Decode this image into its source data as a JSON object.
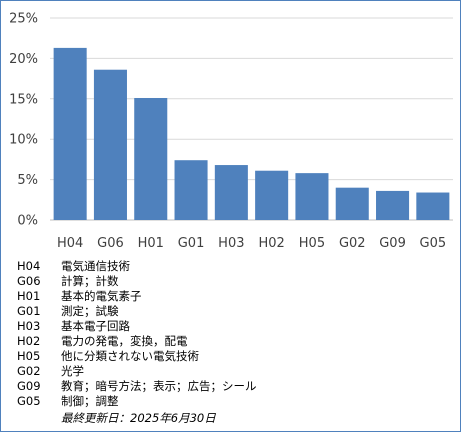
{
  "chart_data": {
    "type": "bar",
    "title": "",
    "xlabel": "",
    "ylabel": "",
    "categories": [
      "H04",
      "G06",
      "H01",
      "G01",
      "H03",
      "H02",
      "H05",
      "G02",
      "G09",
      "G05"
    ],
    "values": [
      21.3,
      18.6,
      15.1,
      7.4,
      6.8,
      6.1,
      5.8,
      4.0,
      3.6,
      3.4
    ],
    "unit": "%",
    "ylim": [
      0,
      25
    ],
    "yticks": [
      "0%",
      "5%",
      "10%",
      "15%",
      "20%",
      "25%"
    ],
    "ytick_values": [
      0,
      5,
      10,
      15,
      20,
      25
    ],
    "grid": true,
    "bar_color": "#4f81bd",
    "grid_color": "#d9d9d9"
  },
  "legend": [
    {
      "code": "H04",
      "desc": "電気通信技術"
    },
    {
      "code": "G06",
      "desc": "計算；計数"
    },
    {
      "code": "H01",
      "desc": "基本的電気素子"
    },
    {
      "code": "G01",
      "desc": "測定；試験"
    },
    {
      "code": "H03",
      "desc": "基本電子回路"
    },
    {
      "code": "H02",
      "desc": "電力の発電，変換，配電"
    },
    {
      "code": "H05",
      "desc": "他に分類されない電気技術"
    },
    {
      "code": "G02",
      "desc": "光学"
    },
    {
      "code": "G09",
      "desc": "教育；暗号方法；表示；広告；シール"
    },
    {
      "code": "G05",
      "desc": "制御；調整"
    }
  ],
  "footnote": "最終更新日：2025年6月30日",
  "colors": {
    "frame": "#4f81bd"
  }
}
